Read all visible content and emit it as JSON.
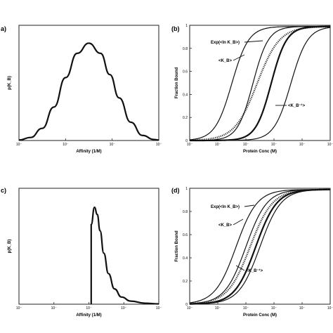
{
  "chart_data": [
    {
      "panel": "a",
      "type": "line",
      "xlabel": "Affinity (1/M)",
      "ylabel": "p(K_B)",
      "xscale": "log",
      "xlim_exp": [
        1,
        4
      ],
      "xtick_labels": [
        "10⁻",
        "10⁻",
        "10⁻",
        "10⁻"
      ],
      "series": [
        {
          "values_logx": [
            1.0,
            1.25,
            1.5,
            1.75,
            2.0,
            2.25,
            2.5,
            2.75,
            2.95,
            3.15,
            3.4,
            3.65,
            3.9,
            4.0
          ],
          "y": [
            0.005,
            0.03,
            0.12,
            0.33,
            0.62,
            0.86,
            0.96,
            0.86,
            0.65,
            0.42,
            0.18,
            0.05,
            0.01,
            0.005
          ]
        }
      ]
    },
    {
      "panel": "b",
      "type": "line",
      "xlabel": "Protein Conc (M)",
      "ylabel": "Fraction Bound",
      "xscale": "log",
      "ylim": [
        0,
        1
      ],
      "ytick_labels": [
        "0",
        "0.2",
        "0.4",
        "0.6",
        "0.8",
        "1"
      ],
      "xtick_labels": [
        "10⁻",
        "10⁻",
        "10⁻",
        "10⁻",
        "10⁻",
        "10⁻"
      ],
      "annotations": [
        "Exp(<ln K_B>)",
        "<K_B>",
        "<K_B⁻¹>"
      ],
      "curves_midpoint_frac": [
        0.3,
        0.45,
        0.48,
        0.58,
        0.72
      ],
      "curves_width_frac": [
        0.06,
        0.055,
        0.08,
        0.055,
        0.06
      ],
      "curves_style": [
        "thin",
        "thin",
        "dotted",
        "thick",
        "thin"
      ]
    },
    {
      "panel": "c",
      "type": "line",
      "xlabel": "Affinity (1/M)",
      "ylabel": "p(K_B)",
      "xscale": "log",
      "xlim_exp": [
        1,
        4
      ],
      "xtick_labels": [
        "10⁻",
        "10⁻",
        "10⁻",
        "10⁻",
        "10⁻"
      ],
      "series": [
        {
          "values_logx": [
            2.55,
            2.55,
            2.62,
            2.68,
            2.74,
            2.82,
            2.92,
            3.05,
            3.2,
            3.4,
            3.7,
            4.0
          ],
          "y": [
            0.0,
            0.78,
            0.95,
            0.88,
            0.72,
            0.5,
            0.3,
            0.15,
            0.07,
            0.03,
            0.01,
            0.003
          ]
        }
      ]
    },
    {
      "panel": "d",
      "type": "line",
      "xlabel": "Protein Conc (M)",
      "ylabel": "Fraction Bound",
      "xscale": "log",
      "ylim": [
        0,
        1
      ],
      "ytick_labels": [
        "0",
        "0.2",
        "0.4",
        "0.6",
        "0.8",
        "1"
      ],
      "xtick_labels": [
        "10⁻",
        "10⁻",
        "10⁻",
        "10⁻",
        "10⁻",
        "10⁻"
      ],
      "annotations": [
        "Exp(<ln K_B>)",
        "<K_B>",
        "<K_B⁻¹>"
      ],
      "curves_midpoint_frac": [
        0.33,
        0.4,
        0.43,
        0.47,
        0.5
      ],
      "curves_width_frac": [
        0.075,
        0.075,
        0.08,
        0.075,
        0.075
      ],
      "curves_style": [
        "thin",
        "thin",
        "dotted",
        "thick",
        "thin"
      ]
    }
  ],
  "labels": {
    "a": "a)",
    "b": "(b)",
    "c": "c)",
    "d": "(d)"
  }
}
